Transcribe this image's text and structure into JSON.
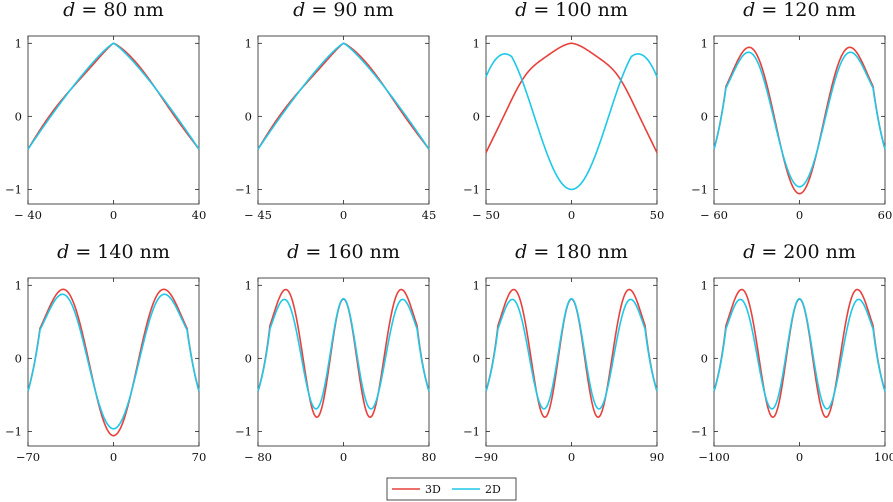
{
  "figure": {
    "legend": [
      {
        "label": "3D",
        "color": "#e8413c"
      },
      {
        "label": "2D",
        "color": "#1ec8e8"
      }
    ]
  },
  "chart_data": [
    {
      "type": "line",
      "title_var": "d",
      "title_eq": "= 80 nm",
      "x_range": [
        -40,
        40
      ],
      "xticks": [
        "− 40",
        "0",
        "40"
      ],
      "yticks": [
        "1",
        "0",
        "−1"
      ],
      "ylim": [
        -1.2,
        1.1
      ],
      "pattern": "central",
      "series": [
        {
          "name": "3D",
          "color": "#e8413c"
        },
        {
          "name": "2D",
          "color": "#1ec8e8"
        }
      ]
    },
    {
      "type": "line",
      "title_var": "d",
      "title_eq": "= 90 nm",
      "x_range": [
        -45,
        45
      ],
      "xticks": [
        "− 45",
        "0",
        "45"
      ],
      "yticks": [
        "1",
        "0",
        "−1"
      ],
      "ylim": [
        -1.2,
        1.1
      ],
      "pattern": "central",
      "series": [
        {
          "name": "3D",
          "color": "#e8413c"
        },
        {
          "name": "2D",
          "color": "#1ec8e8"
        }
      ]
    },
    {
      "type": "line",
      "title_var": "d",
      "title_eq": "= 100 nm",
      "x_range": [
        -50,
        50
      ],
      "xticks": [
        "− 50",
        "0",
        "50"
      ],
      "yticks": [
        "1",
        "0",
        "−1"
      ],
      "ylim": [
        -1.2,
        1.1
      ],
      "pattern": "split",
      "series": [
        {
          "name": "3D",
          "color": "#e8413c"
        },
        {
          "name": "2D",
          "color": "#1ec8e8"
        }
      ]
    },
    {
      "type": "line",
      "title_var": "d",
      "title_eq": "= 120 nm",
      "x_range": [
        -60,
        60
      ],
      "xticks": [
        "− 60",
        "0",
        "60"
      ],
      "yticks": [
        "1",
        "0",
        "−1"
      ],
      "ylim": [
        -1.2,
        1.1
      ],
      "pattern": "double",
      "series": [
        {
          "name": "3D",
          "color": "#e8413c"
        },
        {
          "name": "2D",
          "color": "#1ec8e8"
        }
      ]
    },
    {
      "type": "line",
      "title_var": "d",
      "title_eq": "= 140 nm",
      "x_range": [
        -70,
        70
      ],
      "xticks": [
        "−70",
        "0",
        "70"
      ],
      "yticks": [
        "1",
        "0",
        "−1"
      ],
      "ylim": [
        -1.2,
        1.1
      ],
      "pattern": "double",
      "series": [
        {
          "name": "3D",
          "color": "#e8413c"
        },
        {
          "name": "2D",
          "color": "#1ec8e8"
        }
      ]
    },
    {
      "type": "line",
      "title_var": "d",
      "title_eq": "= 160 nm",
      "x_range": [
        -80,
        80
      ],
      "xticks": [
        "− 80",
        "0",
        "80"
      ],
      "yticks": [
        "1",
        "0",
        "−1"
      ],
      "ylim": [
        -1.2,
        1.1
      ],
      "pattern": "triple",
      "series": [
        {
          "name": "3D",
          "color": "#e8413c"
        },
        {
          "name": "2D",
          "color": "#1ec8e8"
        }
      ]
    },
    {
      "type": "line",
      "title_var": "d",
      "title_eq": "= 180 nm",
      "x_range": [
        -90,
        90
      ],
      "xticks": [
        "−90",
        "0",
        "90"
      ],
      "yticks": [
        "1",
        "0",
        "−1"
      ],
      "ylim": [
        -1.2,
        1.1
      ],
      "pattern": "triple",
      "series": [
        {
          "name": "3D",
          "color": "#e8413c"
        },
        {
          "name": "2D",
          "color": "#1ec8e8"
        }
      ]
    },
    {
      "type": "line",
      "title_var": "d",
      "title_eq": "= 200 nm",
      "x_range": [
        -100,
        100
      ],
      "xticks": [
        "−100",
        "0",
        "100"
      ],
      "yticks": [
        "1",
        "0",
        "−1"
      ],
      "ylim": [
        -1.2,
        1.1
      ],
      "pattern": "triple",
      "series": [
        {
          "name": "3D",
          "color": "#e8413c"
        },
        {
          "name": "2D",
          "color": "#1ec8e8"
        }
      ]
    }
  ]
}
